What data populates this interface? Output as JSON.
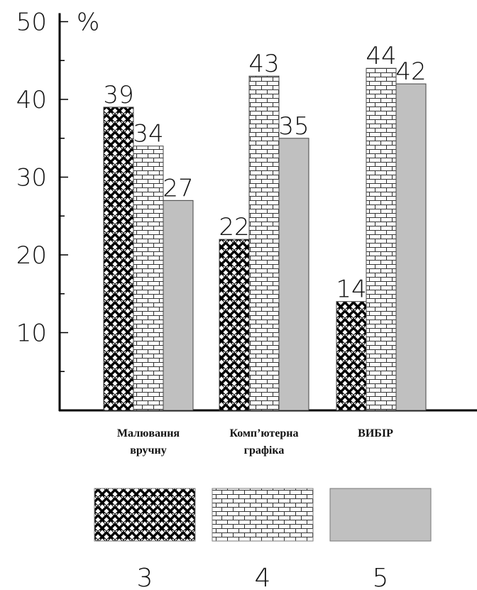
{
  "chart_data": {
    "type": "bar",
    "unit": "%",
    "categories": [
      [
        "Малювання",
        "вручну"
      ],
      [
        "Комп’ютерна",
        "графіка"
      ],
      [
        "ВИБІР"
      ]
    ],
    "series": [
      {
        "name": "3",
        "pattern": "weave",
        "values": [
          39,
          22,
          14
        ]
      },
      {
        "name": "4",
        "pattern": "brick",
        "values": [
          34,
          43,
          44
        ]
      },
      {
        "name": "5",
        "pattern": "solid",
        "color": "#c0c0c0",
        "values": [
          27,
          35,
          42
        ]
      }
    ],
    "ylim": [
      0,
      50
    ],
    "yticks": [
      10,
      20,
      30,
      40,
      50
    ],
    "grid": false,
    "legend_position": "bottom"
  }
}
